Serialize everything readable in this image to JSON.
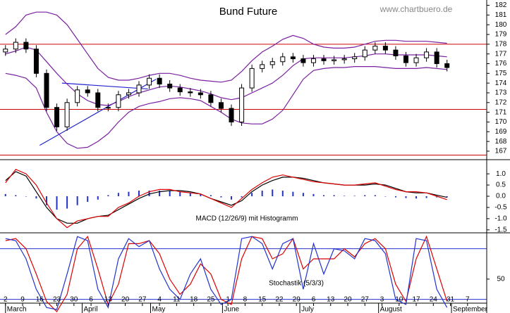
{
  "chart_data": [
    {
      "type": "candlestick",
      "title": "Bund Future",
      "watermark": "www.chartbuero.de",
      "xlim": [
        -1.6,
        140.6
      ],
      "ylim": [
        166.2,
        182.4
      ],
      "yticks": [
        167,
        168,
        169,
        170,
        171,
        172,
        173,
        174,
        175,
        176,
        177,
        178,
        179,
        180,
        181,
        182
      ],
      "x": [
        0,
        3,
        6,
        9,
        12,
        15,
        18,
        21,
        24,
        27,
        30,
        33,
        36,
        39,
        42,
        45,
        48,
        51,
        54,
        57,
        60,
        63,
        66,
        69,
        72,
        75,
        78,
        81,
        84,
        87,
        90,
        93,
        96,
        99,
        102,
        105,
        108,
        111,
        114,
        117,
        120,
        123,
        126,
        129
      ],
      "open": [
        177.2,
        177.5,
        178.2,
        177.5,
        175,
        171.5,
        169.5,
        172,
        173.3,
        173,
        171.5,
        171.5,
        172.8,
        173,
        173.8,
        174.5,
        173.9,
        173.5,
        173.1,
        173,
        172.8,
        172,
        171.4,
        170,
        173.5,
        175.5,
        175.9,
        176.2,
        176.7,
        176.5,
        176.1,
        176.5,
        176.3,
        176.4,
        176.5,
        176.7,
        177.4,
        177.8,
        177.4,
        176.8,
        176.1,
        176.6,
        177.2,
        176
      ],
      "high": [
        177.9,
        178.6,
        178.6,
        177.9,
        175.4,
        171.9,
        172.4,
        173.7,
        173.7,
        173.4,
        171.9,
        173.2,
        173.4,
        174.2,
        174.9,
        174.9,
        174.3,
        173.9,
        173.5,
        173.4,
        173.2,
        172.4,
        171.8,
        173.9,
        175.9,
        176.3,
        176.6,
        177.1,
        177.1,
        176.9,
        176.9,
        176.9,
        176.8,
        176.9,
        177.1,
        177.8,
        178.2,
        178.2,
        177.8,
        177.2,
        177,
        177.6,
        177.6,
        176.4
      ],
      "low": [
        176.8,
        177.1,
        177.1,
        174.6,
        171.1,
        169.1,
        169.1,
        171.6,
        172.6,
        171.1,
        171.1,
        171.1,
        172.4,
        172.6,
        173.4,
        173.5,
        173.1,
        172.7,
        172.6,
        172.4,
        171.6,
        171,
        169.6,
        169.6,
        173.1,
        175.1,
        175.5,
        175.8,
        176.1,
        175.7,
        175.7,
        175.9,
        175.9,
        176,
        176.1,
        176.3,
        177,
        177,
        176.4,
        175.7,
        175.7,
        176.2,
        175.6,
        175.2
      ],
      "close": [
        177.5,
        178.2,
        177.5,
        175,
        171.5,
        169.5,
        172,
        173.3,
        173,
        171.5,
        171.5,
        172.8,
        173,
        173.8,
        174.5,
        173.9,
        173.5,
        173.1,
        173,
        172.8,
        172,
        171.4,
        170,
        173.5,
        175.5,
        175.9,
        176.2,
        176.7,
        176.5,
        176.1,
        176.5,
        176.3,
        176.4,
        176.5,
        176.7,
        177.4,
        177.8,
        177.4,
        176.8,
        176.1,
        176.6,
        177.2,
        176,
        175.6
      ],
      "series": [
        {
          "color": "#7a1fa0",
          "values": [
            179,
            179.8,
            181,
            181.3,
            181.3,
            181,
            180,
            178.5,
            177,
            175.5,
            174.6,
            174.3,
            174.3,
            174.5,
            174.8,
            175,
            175,
            174.8,
            174.5,
            174.3,
            174.2,
            174.1,
            174.3,
            175.2,
            176.3,
            177.2,
            177.8,
            178.5,
            178.9,
            178.6,
            178,
            177.7,
            177.6,
            177.6,
            177.7,
            178,
            178.3,
            178.4,
            178.4,
            178.3,
            178.3,
            178.3,
            178.2,
            178.1
          ]
        },
        {
          "color": "#7a1fa0",
          "values": [
            177,
            177.3,
            177.7,
            177.4,
            176.2,
            175,
            173.9,
            172.9,
            172.2,
            171.8,
            171.7,
            172.1,
            172.6,
            173,
            173.3,
            173.6,
            173.7,
            173.6,
            173.4,
            173.2,
            172.9,
            172.5,
            172.3,
            172.5,
            173,
            173.5,
            174,
            174.8,
            175.8,
            176.5,
            176.6,
            176.6,
            176.6,
            176.6,
            176.7,
            176.8,
            177,
            177,
            176.9,
            176.9,
            176.9,
            176.9,
            176.8,
            176.7
          ]
        },
        {
          "color": "#7a1fa0",
          "values": [
            175,
            174.8,
            174.5,
            173.5,
            171,
            169,
            167.8,
            167.3,
            167.4,
            168,
            168.8,
            170,
            171,
            171.6,
            171.9,
            172.1,
            172.4,
            172.5,
            172.4,
            172.2,
            171.6,
            171,
            170.3,
            169.9,
            169.8,
            169.8,
            170.3,
            171.2,
            172.8,
            174.4,
            175.3,
            175.5,
            175.6,
            175.6,
            175.7,
            175.7,
            175.7,
            175.6,
            175.5,
            175.5,
            175.5,
            175.6,
            175.5,
            175.4
          ]
        }
      ],
      "hlines": [
        {
          "value": 178,
          "color": "#cc0000"
        },
        {
          "value": 171.3,
          "color": "#cc0000"
        },
        {
          "value": 166.6,
          "color": "#cc0000"
        }
      ],
      "trendlines": [
        {
          "x": [
            10,
            44
          ],
          "y": [
            167.6,
            174.4
          ],
          "color": "#2222cc"
        },
        {
          "x": [
            16.5,
            41.6
          ],
          "y": [
            174.0,
            173.4
          ],
          "color": "#2222cc"
        }
      ]
    },
    {
      "type": "line",
      "label": "MACD (12/26/9) mit Histogramm",
      "xlim": [
        -1.6,
        140.6
      ],
      "ylim": [
        -1.6,
        1.6
      ],
      "yticks": [
        {
          "value": 1,
          "label": "1.0"
        },
        {
          "value": 0.5,
          "label": "0.5"
        },
        {
          "value": 0,
          "label": "0.0"
        },
        {
          "value": -0.5,
          "label": "-0.5"
        },
        {
          "value": -1,
          "label": "-1.0"
        },
        {
          "value": -1.5,
          "label": "-1.5"
        }
      ],
      "x": [
        0,
        3,
        6,
        9,
        12,
        15,
        18,
        21,
        24,
        27,
        30,
        33,
        36,
        39,
        42,
        45,
        48,
        51,
        54,
        57,
        60,
        63,
        66,
        69,
        72,
        75,
        78,
        81,
        84,
        87,
        90,
        93,
        96,
        99,
        102,
        105,
        108,
        111,
        114,
        117,
        120,
        123,
        126,
        129
      ],
      "series": [
        {
          "color": "#2233cc",
          "style": "bar",
          "values": [
            0.1,
            0.05,
            0,
            -0.1,
            -0.4,
            -0.6,
            -0.55,
            -0.4,
            -0.25,
            -0.15,
            0.05,
            0.15,
            0.2,
            0.25,
            0.25,
            0.25,
            0.25,
            0.2,
            0.15,
            0.1,
            0.05,
            -0.05,
            -0.15,
            -0.05,
            0.15,
            0.25,
            0.3,
            0.25,
            0.2,
            0.15,
            0.1,
            0.05,
            0.05,
            0.02,
            0.02,
            0.05,
            0.05,
            0,
            -0.05,
            -0.08,
            -0.1,
            -0.08,
            -0.05,
            -0.05
          ]
        },
        {
          "color": "#000000",
          "style": "line",
          "values": [
            0.7,
            1.1,
            0.9,
            0.2,
            -0.5,
            -1.0,
            -1.2,
            -1.2,
            -1.0,
            -0.9,
            -0.85,
            -0.6,
            -0.35,
            -0.1,
            0.1,
            0.2,
            0.25,
            0.25,
            0.2,
            0.1,
            -0.1,
            -0.25,
            -0.4,
            -0.2,
            0.2,
            0.5,
            0.7,
            0.85,
            0.85,
            0.8,
            0.7,
            0.6,
            0.55,
            0.5,
            0.5,
            0.5,
            0.55,
            0.5,
            0.35,
            0.2,
            0.15,
            0.15,
            0.05,
            -0.05
          ]
        },
        {
          "color": "#dd0000",
          "style": "line",
          "values": [
            0.6,
            1.2,
            1.0,
            0.5,
            -0.3,
            -1.0,
            -1.4,
            -1.1,
            -1.0,
            -0.9,
            -0.9,
            -0.5,
            -0.3,
            0,
            0.2,
            0.3,
            0.3,
            0.2,
            0.15,
            0.1,
            -0.1,
            -0.3,
            -0.5,
            -0.1,
            0.3,
            0.6,
            0.85,
            0.95,
            0.85,
            0.75,
            0.65,
            0.6,
            0.55,
            0.5,
            0.5,
            0.55,
            0.6,
            0.45,
            0.3,
            0.2,
            0.2,
            0.15,
            0,
            -0.15
          ]
        }
      ]
    },
    {
      "type": "line",
      "label": "Stochastik (5/3/3)",
      "xlim": [
        -1.6,
        140.6
      ],
      "ylim": [
        27,
        95
      ],
      "yticks": [
        50
      ],
      "hlines": [
        {
          "value": 80,
          "color": "#2233cc"
        },
        {
          "value": 30,
          "color": "#2233cc"
        }
      ],
      "x": [
        0,
        3,
        6,
        9,
        12,
        15,
        18,
        21,
        24,
        27,
        30,
        33,
        36,
        39,
        42,
        45,
        48,
        51,
        54,
        57,
        60,
        63,
        66,
        69,
        72,
        75,
        78,
        81,
        84,
        87,
        90,
        93,
        96,
        99,
        102,
        105,
        108,
        111,
        114,
        117,
        120,
        123,
        126,
        129
      ],
      "series": [
        {
          "color": "#dd0000",
          "style": "line",
          "values": [
            88,
            90,
            80,
            55,
            28,
            18,
            35,
            80,
            92,
            60,
            25,
            45,
            85,
            85,
            88,
            75,
            50,
            35,
            45,
            65,
            55,
            30,
            25,
            70,
            92,
            90,
            70,
            75,
            90,
            60,
            70,
            70,
            70,
            80,
            72,
            85,
            90,
            80,
            45,
            28,
            70,
            92,
            60,
            28
          ]
        },
        {
          "color": "#2233cc",
          "style": "line",
          "values": [
            90,
            88,
            70,
            40,
            22,
            20,
            55,
            92,
            88,
            40,
            22,
            70,
            90,
            82,
            88,
            60,
            40,
            30,
            55,
            70,
            40,
            25,
            30,
            90,
            92,
            85,
            60,
            85,
            90,
            40,
            85,
            55,
            80,
            78,
            70,
            90,
            88,
            75,
            30,
            25,
            90,
            88,
            40,
            22
          ]
        }
      ],
      "xticks": [
        {
          "value": 0,
          "label": "2"
        },
        {
          "value": 5,
          "label": "9"
        },
        {
          "value": 10,
          "label": "16"
        },
        {
          "value": 15,
          "label": "23"
        },
        {
          "value": 20,
          "label": "30"
        },
        {
          "value": 25,
          "label": "6"
        },
        {
          "value": 30,
          "label": "13"
        },
        {
          "value": 35,
          "label": "20"
        },
        {
          "value": 40,
          "label": "27"
        },
        {
          "value": 45,
          "label": "4"
        },
        {
          "value": 50,
          "label": "11"
        },
        {
          "value": 55,
          "label": "18"
        },
        {
          "value": 60,
          "label": "25"
        },
        {
          "value": 65,
          "label": "1"
        },
        {
          "value": 70,
          "label": "8"
        },
        {
          "value": 75,
          "label": "15"
        },
        {
          "value": 80,
          "label": "22"
        },
        {
          "value": 85,
          "label": "29"
        },
        {
          "value": 90,
          "label": "6"
        },
        {
          "value": 95,
          "label": "13"
        },
        {
          "value": 100,
          "label": "20"
        },
        {
          "value": 105,
          "label": "27"
        },
        {
          "value": 110,
          "label": "3"
        },
        {
          "value": 115,
          "label": "10"
        },
        {
          "value": 120,
          "label": "17"
        },
        {
          "value": 125,
          "label": "24"
        },
        {
          "value": 130,
          "label": "31"
        },
        {
          "value": 135,
          "label": "7"
        }
      ],
      "months": [
        {
          "value": 0,
          "label": "March"
        },
        {
          "value": 22.4,
          "label": "April"
        },
        {
          "value": 42.4,
          "label": "May"
        },
        {
          "value": 63.4,
          "label": "June"
        },
        {
          "value": 86,
          "label": "July"
        },
        {
          "value": 109,
          "label": "August"
        },
        {
          "value": 130.3,
          "label": "September"
        }
      ]
    }
  ]
}
